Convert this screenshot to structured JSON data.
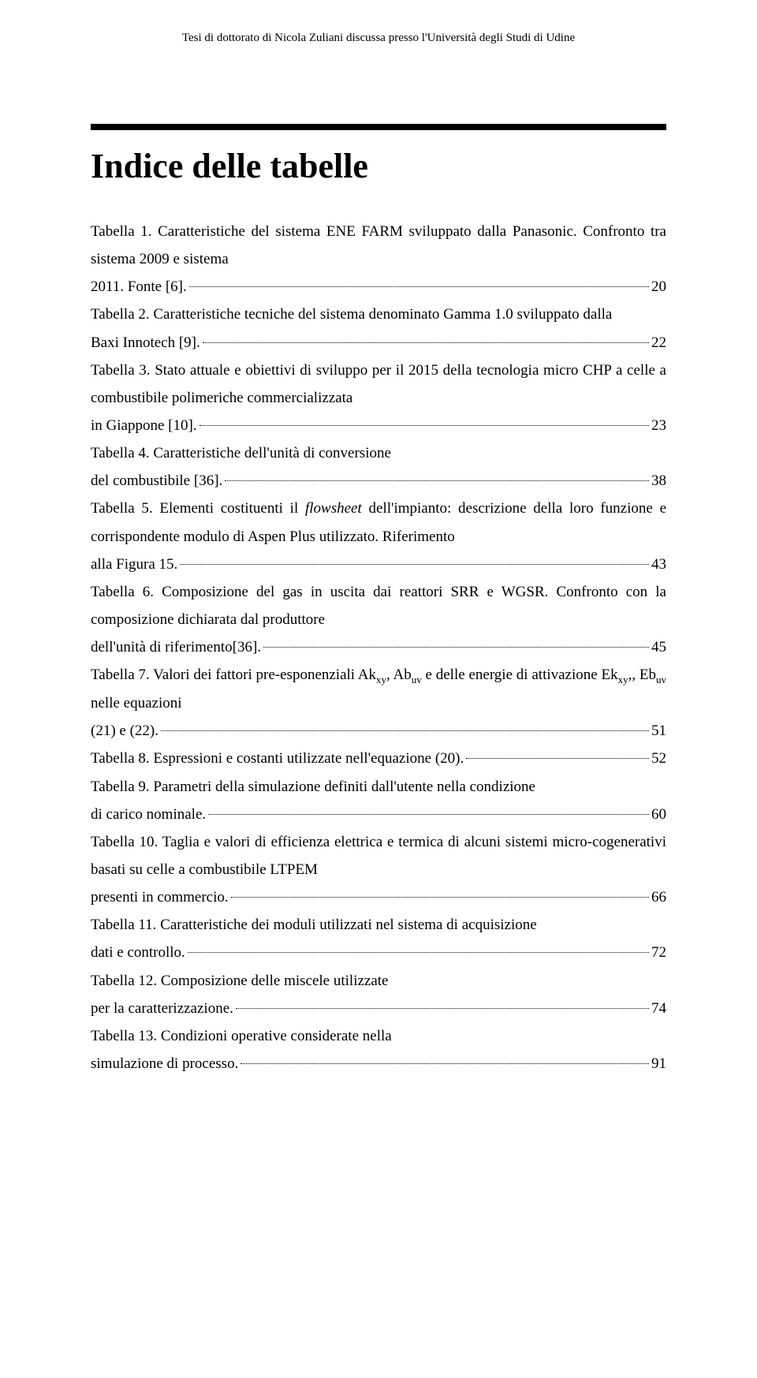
{
  "header_note": "Tesi di dottorato di Nicola Zuliani discussa presso l'Università degli Studi di Udine",
  "page_title": "Indice delle tabelle",
  "entries": [
    {
      "text": "Tabella 1. Caratteristiche del sistema ENE FARM sviluppato dalla Panasonic. Confronto tra sistema 2009 e sistema 2011. Fonte [6].",
      "page": "20"
    },
    {
      "text": "Tabella 2. Caratteristiche tecniche del sistema denominato Gamma 1.0 sviluppato dalla Baxi Innotech [9].",
      "page": "22"
    },
    {
      "text": "Tabella 3. Stato attuale e obiettivi di sviluppo per il 2015 della tecnologia micro CHP a celle a combustibile polimeriche commercializzata in Giappone [10].",
      "page": "23"
    },
    {
      "text": "Tabella 4. Caratteristiche dell'unità di conversione del combustibile [36].",
      "page": "38"
    },
    {
      "text": "Tabella 5. Elementi costituenti il <span class=\"ital\">flowsheet</span> dell'impianto: descrizione della loro funzione e corrispondente modulo di Aspen Plus utilizzato. Riferimento alla Figura 15.",
      "page": "43"
    },
    {
      "text": "Tabella 6. Composizione del gas in uscita dai reattori SRR e WGSR. Confronto con la composizione dichiarata dal produttore dell'unità di riferimento[36].",
      "page": "45"
    },
    {
      "text": "Tabella 7. Valori dei fattori pre-esponenziali Ak<span class=\"sub\">xy</span>, Ab<span class=\"sub\">uv</span> e delle energie di attivazione Ek<span class=\"sub\">xy</span>,, Eb<span class=\"sub\">uv</span> nelle equazioni (21) e (22).",
      "page": "51"
    },
    {
      "text": "Tabella 8. Espressioni e costanti utilizzate nell'equazione (20).",
      "page": "52"
    },
    {
      "text": "Tabella 9. Parametri della simulazione definiti dall'utente nella condizione di carico nominale.",
      "page": "60"
    },
    {
      "text": "Tabella 10. Taglia e valori di efficienza elettrica e termica di alcuni sistemi micro-cogenerativi basati su celle a combustibile LTPEM presenti in commercio.",
      "page": "66"
    },
    {
      "text": "Tabella 11. Caratteristiche dei moduli utilizzati nel sistema di acquisizione dati e controllo.",
      "page": "72"
    },
    {
      "text": "Tabella 12. Composizione delle miscele utilizzate per la caratterizzazione.",
      "page": "74"
    },
    {
      "text": "Tabella 13. Condizioni operative considerate nella simulazione di processo.",
      "page": "91"
    }
  ],
  "colors": {
    "text": "#000000",
    "background": "#ffffff"
  },
  "typography": {
    "body_font": "Times New Roman",
    "title_size_pt": 32,
    "body_size_pt": 14
  }
}
